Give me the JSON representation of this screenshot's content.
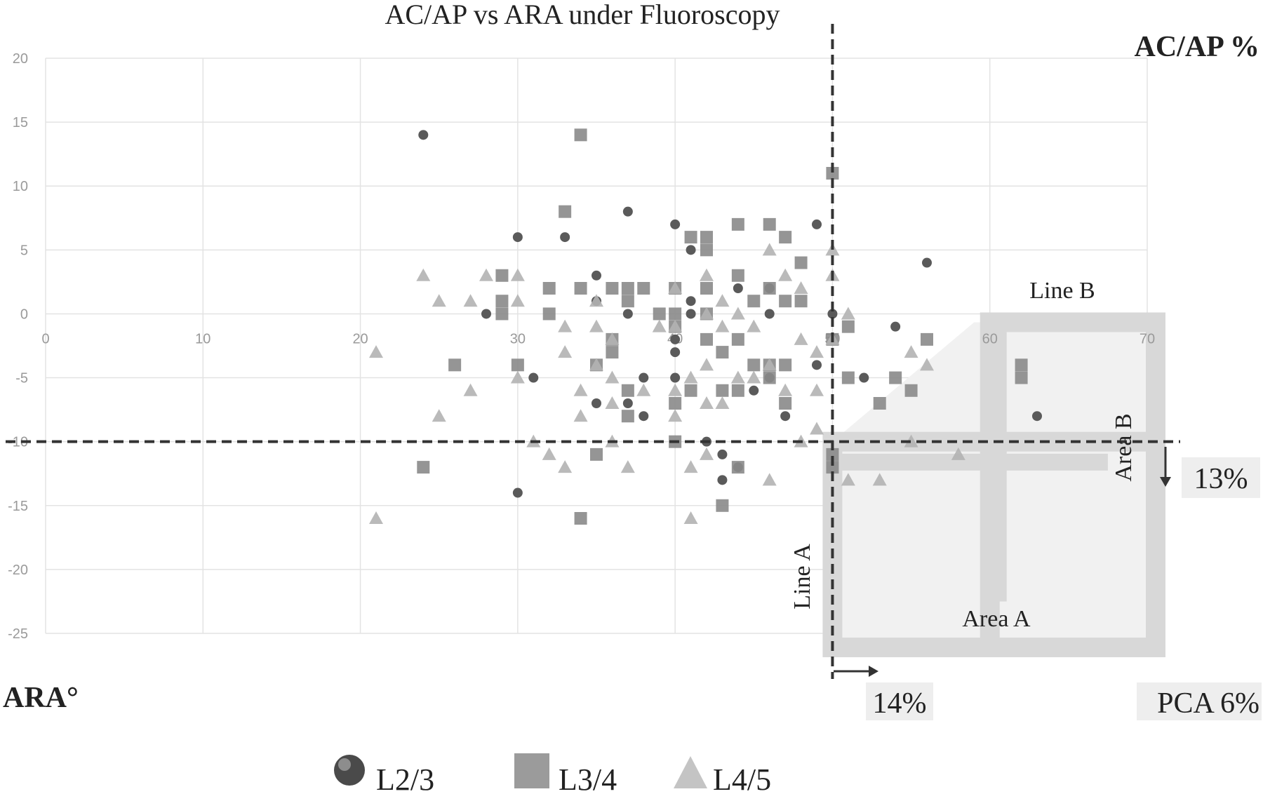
{
  "chart_data": {
    "type": "scatter",
    "title": "AC/AP vs ARA under Fluoroscopy",
    "xlabel": "ARA°",
    "ylabel": "AC/AP %",
    "xlim": [
      0,
      70
    ],
    "ylim": [
      -25,
      20
    ],
    "x_ticks": [
      "0",
      "10",
      "20",
      "30",
      "40",
      "50",
      "60",
      "70"
    ],
    "y_ticks": [
      "20",
      "15",
      "10",
      "5",
      "0",
      "-5",
      "-10",
      "-15",
      "-20",
      "-25"
    ],
    "grid": true,
    "legend_position": "bottom",
    "series": [
      {
        "name": "L2/3",
        "marker": "circle",
        "color": "#5a5a5a",
        "points": [
          [
            24,
            14
          ],
          [
            30,
            6
          ],
          [
            33,
            6
          ],
          [
            37,
            8
          ],
          [
            40,
            7
          ],
          [
            49,
            7
          ],
          [
            35,
            3
          ],
          [
            35,
            1
          ],
          [
            37,
            0
          ],
          [
            28,
            0
          ],
          [
            41,
            5
          ],
          [
            41,
            1
          ],
          [
            41,
            0
          ],
          [
            44,
            2
          ],
          [
            46,
            2
          ],
          [
            46,
            0
          ],
          [
            50,
            0
          ],
          [
            40,
            -2
          ],
          [
            40,
            -3
          ],
          [
            40,
            -5
          ],
          [
            31,
            -5
          ],
          [
            35,
            -7
          ],
          [
            37,
            -7
          ],
          [
            38,
            -5
          ],
          [
            38,
            -8
          ],
          [
            45,
            -6
          ],
          [
            47,
            -8
          ],
          [
            49,
            -4
          ],
          [
            52,
            -5
          ],
          [
            54,
            -1
          ],
          [
            56,
            4
          ],
          [
            63,
            -8
          ],
          [
            30,
            -14
          ],
          [
            43,
            -11
          ],
          [
            43,
            -13
          ],
          [
            44,
            -12
          ],
          [
            42,
            -10
          ],
          [
            46,
            -5
          ]
        ]
      },
      {
        "name": "L3/4",
        "marker": "square",
        "color": "#8a8a8a",
        "points": [
          [
            34,
            14
          ],
          [
            33,
            8
          ],
          [
            41,
            6
          ],
          [
            42,
            6
          ],
          [
            42,
            5
          ],
          [
            44,
            7
          ],
          [
            46,
            7
          ],
          [
            47,
            6
          ],
          [
            48,
            4
          ],
          [
            50,
            11
          ],
          [
            29,
            3
          ],
          [
            29,
            1
          ],
          [
            29,
            0
          ],
          [
            32,
            2
          ],
          [
            32,
            0
          ],
          [
            34,
            2
          ],
          [
            36,
            2
          ],
          [
            37,
            2
          ],
          [
            37,
            1
          ],
          [
            38,
            2
          ],
          [
            39,
            0
          ],
          [
            40,
            2
          ],
          [
            40,
            0
          ],
          [
            40,
            -1
          ],
          [
            42,
            2
          ],
          [
            42,
            0
          ],
          [
            44,
            3
          ],
          [
            45,
            1
          ],
          [
            46,
            2
          ],
          [
            47,
            1
          ],
          [
            48,
            1
          ],
          [
            42,
            -2
          ],
          [
            43,
            -3
          ],
          [
            44,
            -2
          ],
          [
            45,
            -4
          ],
          [
            46,
            -4
          ],
          [
            46,
            -5
          ],
          [
            47,
            -4
          ],
          [
            36,
            -2
          ],
          [
            36,
            -3
          ],
          [
            35,
            -4
          ],
          [
            37,
            -6
          ],
          [
            37,
            -8
          ],
          [
            30,
            -4
          ],
          [
            26,
            -4
          ],
          [
            41,
            -6
          ],
          [
            40,
            -7
          ],
          [
            43,
            -6
          ],
          [
            44,
            -6
          ],
          [
            47,
            -7
          ],
          [
            50,
            -2
          ],
          [
            51,
            -1
          ],
          [
            51,
            -5
          ],
          [
            53,
            -7
          ],
          [
            54,
            -5
          ],
          [
            55,
            -6
          ],
          [
            56,
            -2
          ],
          [
            62,
            -4
          ],
          [
            62,
            -5
          ],
          [
            24,
            -12
          ],
          [
            35,
            -11
          ],
          [
            34,
            -16
          ],
          [
            40,
            -10
          ],
          [
            43,
            -15
          ],
          [
            44,
            -12
          ],
          [
            50,
            -11
          ],
          [
            50,
            -12
          ]
        ]
      },
      {
        "name": "L4/5",
        "marker": "triangle",
        "color": "#b3b3b3",
        "points": [
          [
            24,
            3
          ],
          [
            25,
            1
          ],
          [
            27,
            1
          ],
          [
            28,
            3
          ],
          [
            30,
            3
          ],
          [
            30,
            1
          ],
          [
            33,
            -1
          ],
          [
            33,
            -3
          ],
          [
            35,
            -1
          ],
          [
            35,
            1
          ],
          [
            36,
            -2
          ],
          [
            39,
            -1
          ],
          [
            40,
            2
          ],
          [
            40,
            -1
          ],
          [
            42,
            3
          ],
          [
            42,
            0
          ],
          [
            43,
            1
          ],
          [
            43,
            -1
          ],
          [
            44,
            0
          ],
          [
            45,
            -1
          ],
          [
            46,
            5
          ],
          [
            47,
            3
          ],
          [
            48,
            2
          ],
          [
            48,
            -2
          ],
          [
            49,
            -3
          ],
          [
            50,
            5
          ],
          [
            50,
            3
          ],
          [
            50,
            -2
          ],
          [
            51,
            0
          ],
          [
            21,
            -3
          ],
          [
            25,
            -8
          ],
          [
            27,
            -6
          ],
          [
            30,
            -5
          ],
          [
            34,
            -6
          ],
          [
            34,
            -8
          ],
          [
            35,
            -4
          ],
          [
            36,
            -5
          ],
          [
            36,
            -7
          ],
          [
            38,
            -6
          ],
          [
            40,
            -6
          ],
          [
            40,
            -8
          ],
          [
            41,
            -5
          ],
          [
            42,
            -4
          ],
          [
            42,
            -7
          ],
          [
            43,
            -7
          ],
          [
            44,
            -5
          ],
          [
            45,
            -5
          ],
          [
            46,
            -4
          ],
          [
            47,
            -6
          ],
          [
            49,
            -6
          ],
          [
            49,
            -9
          ],
          [
            55,
            -3
          ],
          [
            56,
            -4
          ],
          [
            31,
            -10
          ],
          [
            32,
            -11
          ],
          [
            33,
            -12
          ],
          [
            36,
            -10
          ],
          [
            37,
            -12
          ],
          [
            41,
            -12
          ],
          [
            42,
            -11
          ],
          [
            46,
            -13
          ],
          [
            51,
            -13
          ],
          [
            53,
            -13
          ],
          [
            55,
            -10
          ],
          [
            58,
            -11
          ],
          [
            21,
            -16
          ],
          [
            41,
            -16
          ],
          [
            48,
            -10
          ]
        ]
      }
    ],
    "reference_lines": {
      "vertical_x": 50,
      "horizontal_y": -10
    },
    "annotations": {
      "line_a": "Line A",
      "line_b": "Line B",
      "area_a": "Area A",
      "area_b": "Area B",
      "pct_right": "13%",
      "pct_bottom": "14%",
      "pca": "PCA 6%"
    }
  },
  "legend": [
    {
      "label": "L2/3",
      "icon": "circle-marker-icon"
    },
    {
      "label": "L3/4",
      "icon": "square-marker-icon"
    },
    {
      "label": "L4/5",
      "icon": "triangle-marker-icon"
    }
  ]
}
